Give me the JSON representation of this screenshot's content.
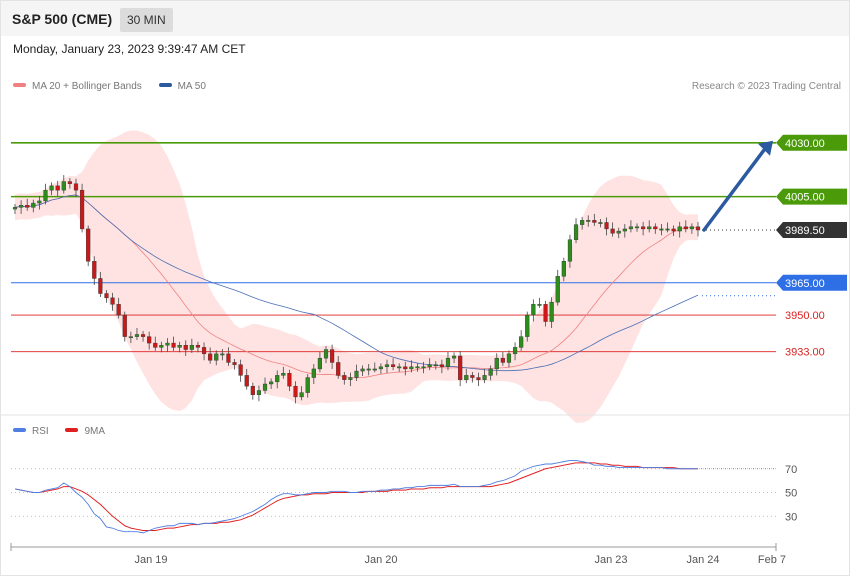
{
  "header": {
    "title": "S&P 500 (CME)",
    "timeframe": "30 MIN"
  },
  "datetime": "Monday, January 23, 2023 9:39:47 AM CET",
  "legend": [
    {
      "label": "MA 20 + Bollinger Bands",
      "color": "#f08080"
    },
    {
      "label": "MA 50",
      "color": "#2b5aa0"
    }
  ],
  "credit": "Research © 2023 Trading Central",
  "rsi_legend": [
    {
      "label": "RSI",
      "color": "#4f7fe0"
    },
    {
      "label": "9MA",
      "color": "#e02020"
    }
  ],
  "chart_data": {
    "type": "line",
    "subtype": "candlestick",
    "price_range": [
      3905,
      4048
    ],
    "last_price": 3989.5,
    "levels": [
      {
        "value": 4030.0,
        "label": "4030.00",
        "kind": "resistance",
        "color": "#4a9a0a"
      },
      {
        "value": 4005.0,
        "label": "4005.00",
        "kind": "resistance",
        "color": "#4a9a0a"
      },
      {
        "value": 3989.5,
        "label": "3989.50",
        "kind": "last",
        "color": "#333333"
      },
      {
        "value": 3965.0,
        "label": "3965.00",
        "kind": "pivot",
        "color": "#2f6fe6"
      },
      {
        "value": 3950.0,
        "label": "3950.00",
        "kind": "support",
        "color": "#dd2222"
      },
      {
        "value": 3933.0,
        "label": "3933.00",
        "kind": "support",
        "color": "#dd2222"
      }
    ],
    "projection": {
      "from": 3989.5,
      "to": 4030.0,
      "direction": "up"
    },
    "close_series": [
      4000,
      4001,
      4000,
      4002,
      4003,
      4008,
      4010,
      4008,
      4012,
      4011,
      4008,
      3990,
      3975,
      3967,
      3960,
      3958,
      3955,
      3950,
      3940,
      3940,
      3941,
      3940,
      3937,
      3935,
      3936,
      3937,
      3935,
      3936,
      3934,
      3936,
      3935,
      3932,
      3929,
      3932,
      3932,
      3928,
      3927,
      3922,
      3917,
      3913,
      3915,
      3918,
      3919,
      3922,
      3923,
      3917,
      3912,
      3914,
      3921,
      3925,
      3930,
      3934,
      3928,
      3922,
      3920,
      3921,
      3924,
      3925,
      3925,
      3925,
      3926,
      3927,
      3926,
      3926,
      3925,
      3926,
      3926,
      3926,
      3927,
      3927,
      3926,
      3930,
      3931,
      3920,
      3922,
      3921,
      3920,
      3922,
      3925,
      3930,
      3928,
      3932,
      3935,
      3940,
      3950,
      3955,
      3955,
      3947,
      3956,
      3968,
      3975,
      3985,
      3992,
      3994,
      3994,
      3993,
      3993,
      3990,
      3988,
      3989,
      3990,
      3991,
      3991,
      3990,
      3991,
      3990,
      3990,
      3990,
      3989,
      3991,
      3990,
      3991,
      3989.5
    ],
    "x_ticks": [
      "Jan 19",
      "Jan 20",
      "Jan 23",
      "Jan 24",
      "Feb 7"
    ],
    "rsi": {
      "range": [
        10,
        90
      ],
      "levels": [
        70,
        50,
        30
      ],
      "rsi_series": [
        53,
        52,
        51,
        50,
        50,
        52,
        53,
        54,
        58,
        55,
        50,
        46,
        40,
        32,
        28,
        21,
        20,
        18,
        17,
        17,
        17,
        16,
        18,
        20,
        21,
        22,
        22,
        24,
        24,
        24,
        23,
        24,
        24,
        25,
        26,
        27,
        28,
        30,
        32,
        34,
        37,
        40,
        44,
        47,
        49,
        49,
        48,
        48,
        49,
        50,
        50,
        50,
        51,
        51,
        51,
        50,
        50,
        51,
        51,
        51,
        52,
        52,
        53,
        53,
        54,
        54,
        55,
        55,
        56,
        56,
        56,
        56,
        57,
        55,
        55,
        55,
        55,
        56,
        57,
        59,
        60,
        62,
        64,
        68,
        70,
        72,
        73,
        74,
        74,
        75,
        76,
        77,
        77,
        76,
        75,
        73,
        73,
        72,
        72,
        71,
        71,
        71,
        71,
        71,
        71,
        71,
        71,
        70,
        70,
        70,
        70,
        70,
        70
      ],
      "ma_series": [
        53,
        52,
        51,
        50,
        50,
        51,
        52,
        53,
        55,
        55,
        53,
        51,
        48,
        44,
        40,
        35,
        30,
        26,
        22,
        20,
        19,
        18,
        18,
        18,
        19,
        20,
        20,
        21,
        22,
        23,
        23,
        24,
        24,
        24,
        25,
        25,
        26,
        27,
        29,
        31,
        34,
        37,
        40,
        43,
        45,
        46,
        47,
        48,
        48,
        49,
        49,
        49,
        50,
        50,
        50,
        50,
        50,
        50,
        51,
        51,
        51,
        51,
        52,
        52,
        52,
        53,
        53,
        53,
        54,
        54,
        54,
        55,
        55,
        55,
        55,
        55,
        55,
        55,
        55,
        56,
        57,
        58,
        60,
        62,
        64,
        66,
        68,
        70,
        71,
        72,
        73,
        74,
        75,
        75,
        75,
        75,
        74,
        74,
        73,
        73,
        72,
        72,
        72,
        71,
        71,
        71,
        71,
        71,
        71,
        70,
        70,
        70,
        70
      ]
    }
  }
}
